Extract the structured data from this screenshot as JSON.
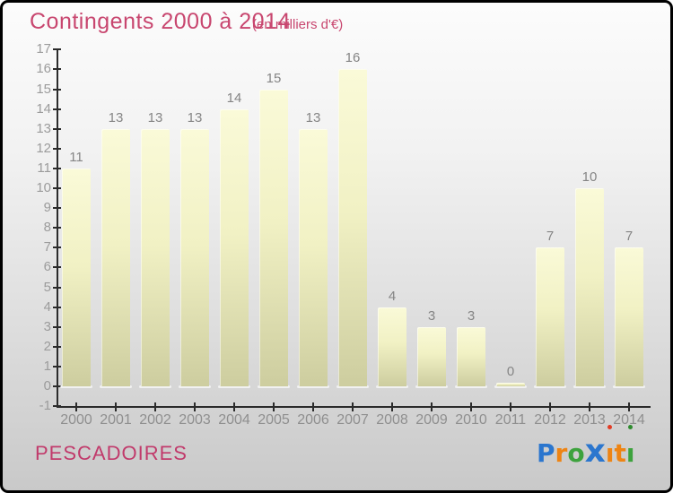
{
  "header": {
    "title": "Contingents 2000 à 2014",
    "subtitle": "(en milliers d'€)",
    "title_color": "#c8466f"
  },
  "chart_data": {
    "type": "bar",
    "categories": [
      "2000",
      "2001",
      "2002",
      "2003",
      "2004",
      "2005",
      "2006",
      "2007",
      "2008",
      "2009",
      "2010",
      "2011",
      "2012",
      "2013",
      "2014"
    ],
    "values": [
      11,
      13,
      13,
      13,
      14,
      15,
      13,
      16,
      4,
      3,
      3,
      0,
      7,
      10,
      7
    ],
    "title": "Contingents 2000 à 2014",
    "subtitle": "(en milliers d'€)",
    "xlabel": "",
    "ylabel": "",
    "ylim": [
      -1,
      17
    ],
    "ytick_step": 1,
    "grid": false,
    "legend": "none",
    "value_labels": true,
    "bar_color_top": "#fafad8",
    "bar_color_mid": "#f1f1c4",
    "bar_color_bottom": "#cdcd9f",
    "axis_color": "#2b2b2b",
    "tick_label_color": "#9b9b9b",
    "value_label_color": "#858585"
  },
  "footer": {
    "place_name": "PESCADOIRES",
    "place_color": "#c13a6b",
    "logo": {
      "name": "Proxiti",
      "letters": [
        {
          "char": "P",
          "color": "#2b76ce",
          "size": 28
        },
        {
          "char": "r",
          "color": "#ee8413",
          "size": 28
        },
        {
          "char": "o",
          "color": "#3da23d",
          "size": 28
        },
        {
          "char": "x",
          "color": "#2b76ce",
          "size": 36
        },
        {
          "char": "i",
          "color": "#ee8413",
          "size": 28,
          "dot_color": "#e23b24"
        },
        {
          "char": "t",
          "color": "#ee8413",
          "size": 28
        },
        {
          "char": "i",
          "color": "#3da23d",
          "size": 28,
          "dot_color": "#2e8b2e"
        }
      ]
    }
  }
}
